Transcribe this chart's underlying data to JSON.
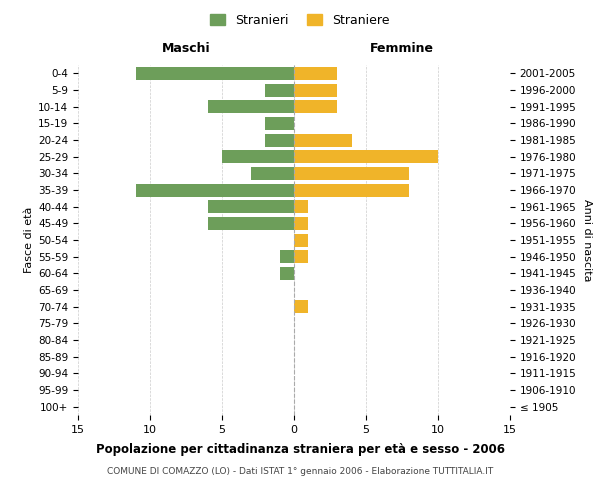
{
  "age_groups": [
    "100+",
    "95-99",
    "90-94",
    "85-89",
    "80-84",
    "75-79",
    "70-74",
    "65-69",
    "60-64",
    "55-59",
    "50-54",
    "45-49",
    "40-44",
    "35-39",
    "30-34",
    "25-29",
    "20-24",
    "15-19",
    "10-14",
    "5-9",
    "0-4"
  ],
  "birth_years": [
    "≤ 1905",
    "1906-1910",
    "1911-1915",
    "1916-1920",
    "1921-1925",
    "1926-1930",
    "1931-1935",
    "1936-1940",
    "1941-1945",
    "1946-1950",
    "1951-1955",
    "1956-1960",
    "1961-1965",
    "1966-1970",
    "1971-1975",
    "1976-1980",
    "1981-1985",
    "1986-1990",
    "1991-1995",
    "1996-2000",
    "2001-2005"
  ],
  "males": [
    0,
    0,
    0,
    0,
    0,
    0,
    0,
    0,
    1,
    1,
    0,
    6,
    6,
    11,
    3,
    5,
    2,
    2,
    6,
    2,
    11
  ],
  "females": [
    0,
    0,
    0,
    0,
    0,
    0,
    1,
    0,
    0,
    1,
    1,
    1,
    1,
    8,
    8,
    10,
    4,
    0,
    3,
    3,
    3
  ],
  "male_color": "#6d9e5a",
  "female_color": "#f0b429",
  "background_color": "#ffffff",
  "grid_color": "#cccccc",
  "title": "Popolazione per cittadinanza straniera per età e sesso - 2006",
  "subtitle": "COMUNE DI COMAZZO (LO) - Dati ISTAT 1° gennaio 2006 - Elaborazione TUTTITALIA.IT",
  "xlabel_left": "Maschi",
  "xlabel_right": "Femmine",
  "ylabel_left": "Fasce di età",
  "ylabel_right": "Anni di nascita",
  "legend_male": "Stranieri",
  "legend_female": "Straniere",
  "xlim": 15,
  "center_line_color": "#aaaaaa",
  "xticks": [
    -15,
    -10,
    -5,
    0,
    5,
    10,
    15
  ]
}
